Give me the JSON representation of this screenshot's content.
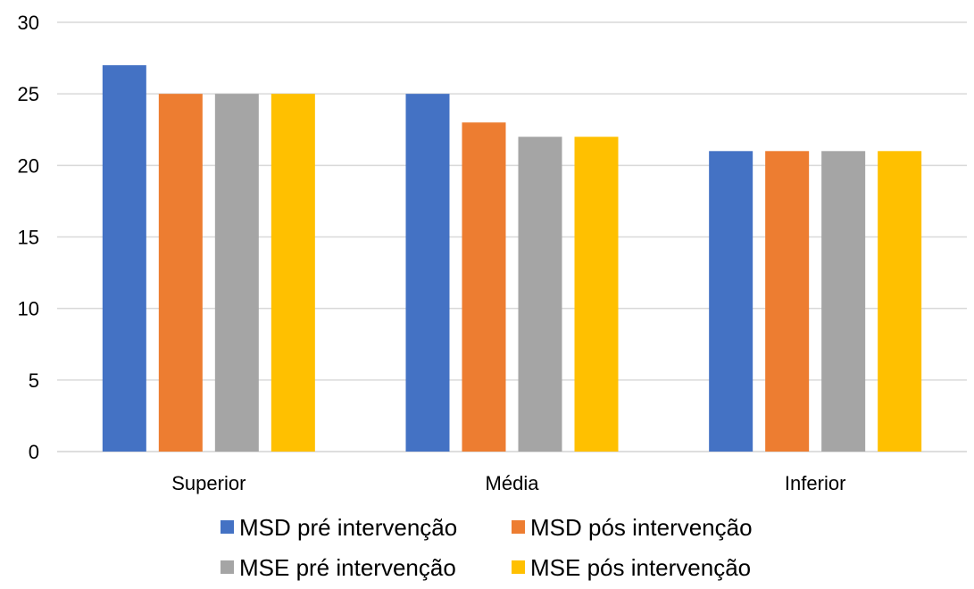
{
  "chart_data": {
    "type": "bar",
    "title": "",
    "xlabel": "",
    "ylabel": "",
    "categories": [
      "Superior",
      "Média",
      "Inferior"
    ],
    "series": [
      {
        "name": "MSD pré intervenção",
        "values": [
          27,
          25,
          21
        ],
        "color": "#4472C4"
      },
      {
        "name": "MSD pós intervenção",
        "values": [
          25,
          23,
          21
        ],
        "color": "#ED7D31"
      },
      {
        "name": "MSE pré intervenção",
        "values": [
          25,
          22,
          21
        ],
        "color": "#A5A5A5"
      },
      {
        "name": "MSE pós intervenção",
        "values": [
          25,
          22,
          21
        ],
        "color": "#FFC000"
      }
    ],
    "ylim": [
      0,
      30
    ],
    "yticks": [
      0,
      5,
      10,
      15,
      20,
      25,
      30
    ],
    "grid": true,
    "legend_position": "bottom",
    "gridline_color": "#D9D9D9"
  }
}
